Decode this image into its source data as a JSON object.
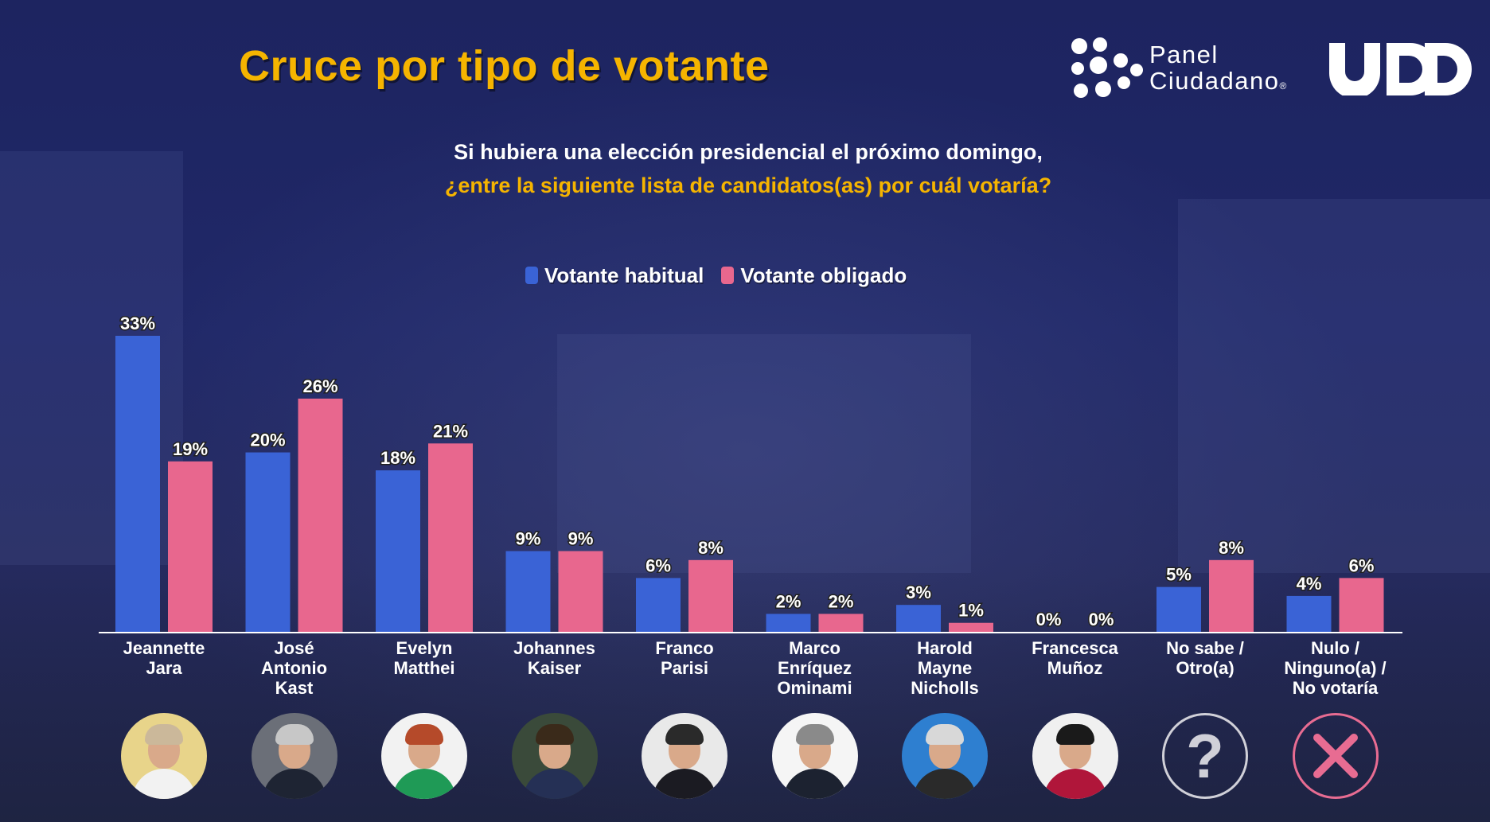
{
  "header": {
    "title": "Cruce por tipo de votante",
    "subtitle_line1": "Si hubiera una elección presidencial el próximo domingo,",
    "subtitle_line2": "¿entre la siguiente lista de candidatos(as) por cuál votaría?"
  },
  "logos": {
    "panel_line1": "Panel",
    "panel_line2": "Ciudadano",
    "panel_mark": "®",
    "udd_wordmark": "UDD"
  },
  "legend": [
    {
      "label": "Votante habitual",
      "color": "#3a63d6"
    },
    {
      "label": "Votante obligado",
      "color": "#e8678e"
    }
  ],
  "avatars": [
    {
      "icon": "candidate-photo-icon",
      "bg": "#e8d48a",
      "hair": "#cbb89a",
      "clothes": "#f2f2f2"
    },
    {
      "icon": "candidate-photo-icon",
      "bg": "#6b6f78",
      "hair": "#c7c7c7",
      "clothes": "#1e2433"
    },
    {
      "icon": "candidate-photo-icon",
      "bg": "#f2f2f2",
      "hair": "#b54a2a",
      "clothes": "#1f9a56"
    },
    {
      "icon": "candidate-photo-icon",
      "bg": "#3a4a3a",
      "hair": "#3a2a1a",
      "clothes": "#253055"
    },
    {
      "icon": "candidate-photo-icon",
      "bg": "#e9e9e9",
      "hair": "#2a2a2a",
      "clothes": "#1b1b22"
    },
    {
      "icon": "candidate-photo-icon",
      "bg": "#f5f5f5",
      "hair": "#8a8a8a",
      "clothes": "#1c2230"
    },
    {
      "icon": "candidate-photo-icon",
      "bg": "#2e7fd0",
      "hair": "#d8d8d8",
      "clothes": "#2a2a2a"
    },
    {
      "icon": "candidate-photo-icon",
      "bg": "#f0f0f0",
      "hair": "#1a1a1a",
      "clothes": "#b0163a"
    },
    {
      "icon": "question-mark-icon",
      "glyph": "?"
    },
    {
      "icon": "cross-icon",
      "color": "#e86c92"
    }
  ],
  "chart_data": {
    "type": "bar",
    "title": "Cruce por tipo de votante",
    "xlabel": "",
    "ylabel": "",
    "ylim": [
      0,
      33
    ],
    "grid": false,
    "legend_position": "top-center",
    "categories": [
      [
        "Jeannette",
        "Jara"
      ],
      [
        "José",
        "Antonio",
        "Kast"
      ],
      [
        "Evelyn",
        "Matthei"
      ],
      [
        "Johannes",
        "Kaiser"
      ],
      [
        "Franco",
        "Parisi"
      ],
      [
        "Marco",
        "Enríquez",
        "Ominami"
      ],
      [
        "Harold",
        "Mayne",
        "Nicholls"
      ],
      [
        "Francesca",
        "Muñoz"
      ],
      [
        "No sabe /",
        "Otro(a)"
      ],
      [
        "Nulo /",
        "Ninguno(a) /",
        "No votaría"
      ]
    ],
    "series": [
      {
        "name": "Votante habitual",
        "color": "#3a63d6",
        "values": [
          33,
          20,
          18,
          9,
          6,
          2,
          3,
          0,
          5,
          4
        ],
        "labels": [
          "33%",
          "20%",
          "18%",
          "9%",
          "6%",
          "2%",
          "3%",
          "0%",
          "5%",
          "4%"
        ]
      },
      {
        "name": "Votante obligado",
        "color": "#e8678e",
        "values": [
          19,
          26,
          21,
          9,
          8,
          2,
          1,
          0,
          8,
          6
        ],
        "labels": [
          "19%",
          "26%",
          "21%",
          "9%",
          "8%",
          "2%",
          "1%",
          "0%",
          "8%",
          "6%"
        ]
      }
    ]
  }
}
